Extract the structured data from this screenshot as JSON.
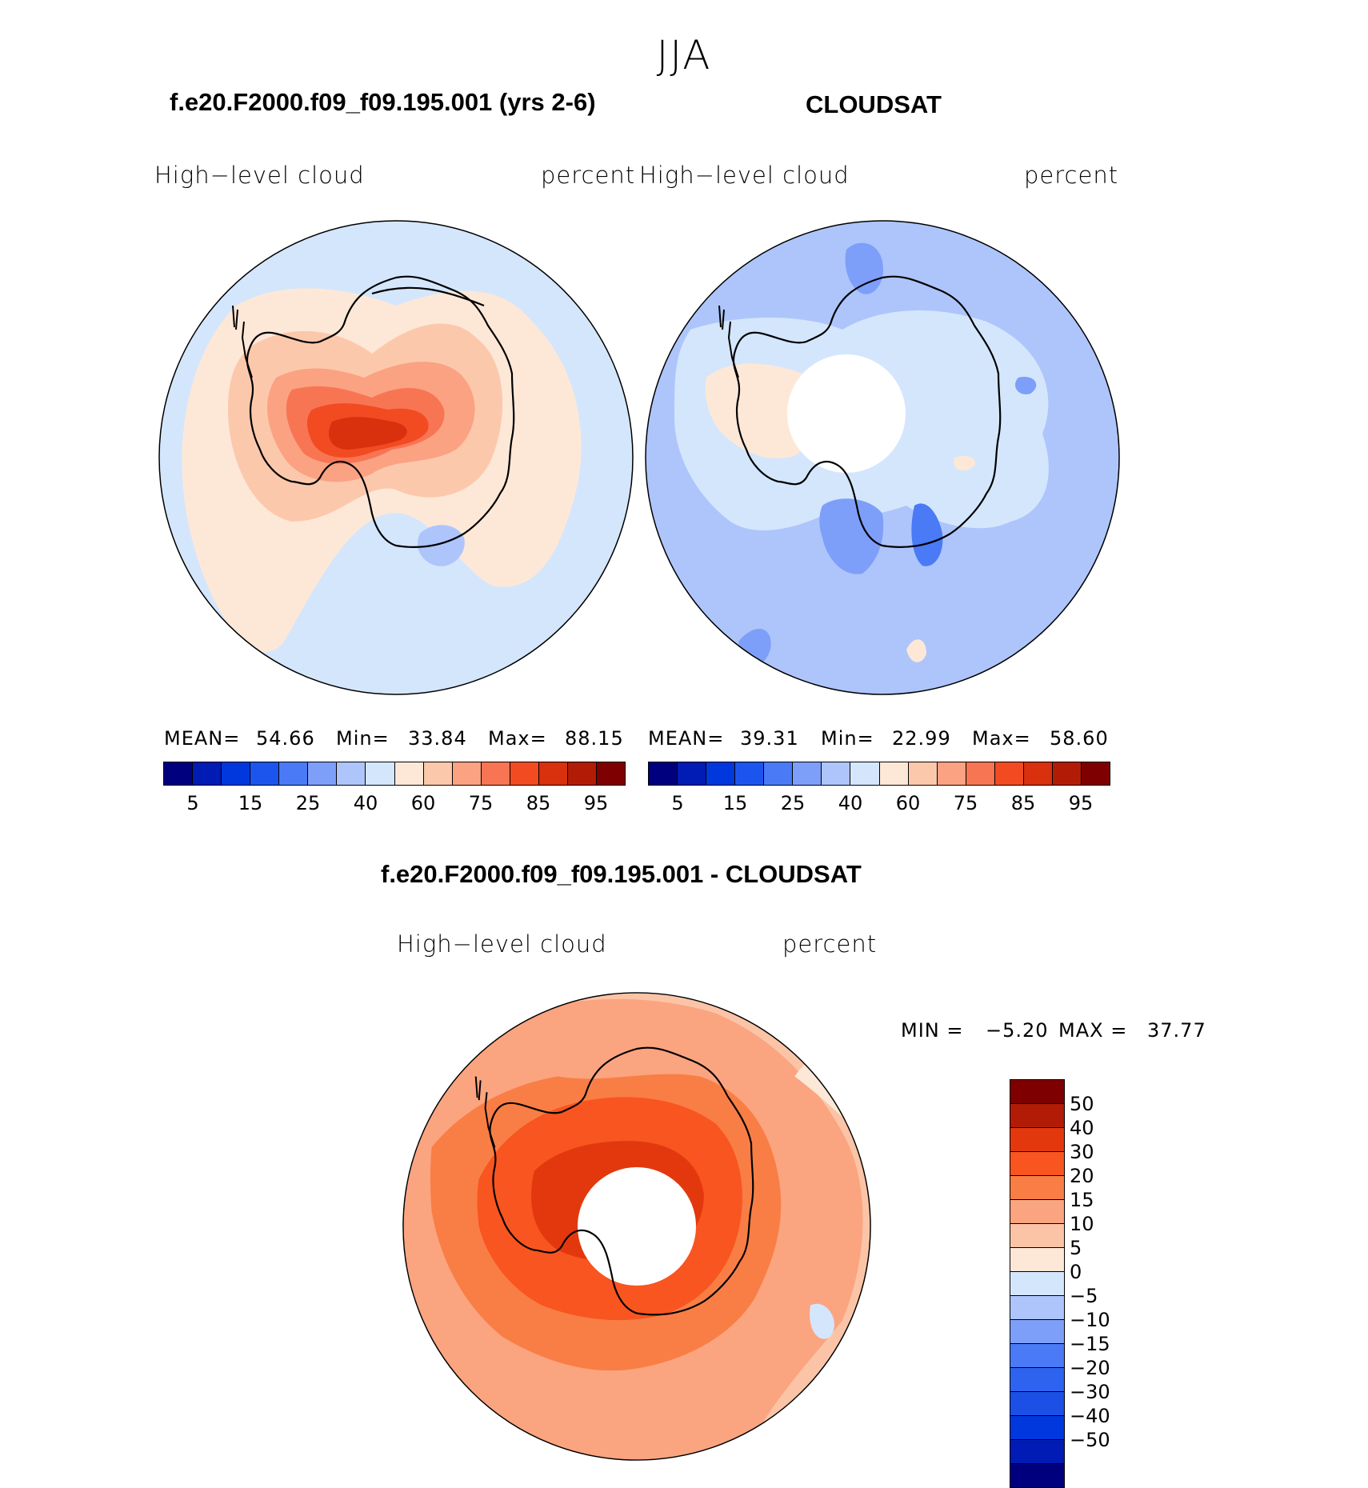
{
  "season": "JJA",
  "panels": {
    "model": {
      "title": "f.e20.F2000.f09_f09.195.001 (yrs 2-6)",
      "variable": "High−level  cloud",
      "units": "percent",
      "mean_label": "MEAN=",
      "mean": "54.66",
      "min_label": "Min=",
      "min": "33.84",
      "max_label": "Max=",
      "max": "88.15"
    },
    "obs": {
      "title": "CLOUDSAT",
      "variable": "High−level  cloud",
      "units": "percent",
      "mean_label": "MEAN=",
      "mean": "39.31",
      "min_label": "Min=",
      "min": "22.99",
      "max_label": "Max=",
      "max": "58.60"
    },
    "diff": {
      "title": "f.e20.F2000.f09_f09.195.001 - CLOUDSAT",
      "variable": "High−level  cloud",
      "units": "percent",
      "min_label": "MIN =",
      "min": "−5.20",
      "max_label": "MAX =",
      "max": "37.77"
    }
  },
  "colorbar_abs": {
    "colors": [
      "#00007f",
      "#001cb5",
      "#0038dd",
      "#1c55ee",
      "#4a7af6",
      "#7d9ff9",
      "#aec5fb",
      "#d4e6fc",
      "#fde8d7",
      "#fcc8ac",
      "#fba283",
      "#f87554",
      "#f24b22",
      "#d9300e",
      "#b21c07",
      "#7f0000"
    ],
    "ticks": [
      "5",
      "15",
      "25",
      "40",
      "60",
      "75",
      "85",
      "95"
    ]
  },
  "colorbar_diff": {
    "colors": [
      "#7f0000",
      "#b21c07",
      "#e3380d",
      "#f85520",
      "#f97e45",
      "#fba480",
      "#fcc4a7",
      "#fde8d7",
      "#d4e6fc",
      "#aec5fb",
      "#7d9ff9",
      "#4a7af6",
      "#2e63ef",
      "#1c4fe6",
      "#0038dd",
      "#001cb5",
      "#00007f"
    ],
    "ticks": [
      "50",
      "40",
      "30",
      "20",
      "15",
      "10",
      "5",
      "0",
      "−5",
      "−10",
      "−15",
      "−20",
      "−30",
      "−40",
      "−50"
    ]
  },
  "chart_data": [
    {
      "type": "heatmap",
      "projection": "south polar stereographic",
      "title": "f.e20.F2000.f09_f09.195.001 (yrs 2-6)",
      "season": "JJA",
      "variable": "High-level cloud",
      "units": "percent",
      "levels": [
        5,
        10,
        15,
        20,
        25,
        30,
        40,
        50,
        60,
        65,
        75,
        80,
        85,
        90,
        95
      ],
      "mean": 54.66,
      "min": 33.84,
      "max": 88.15
    },
    {
      "type": "heatmap",
      "projection": "south polar stereographic",
      "title": "CLOUDSAT",
      "season": "JJA",
      "variable": "High-level cloud",
      "units": "percent",
      "levels": [
        5,
        10,
        15,
        20,
        25,
        30,
        40,
        50,
        60,
        65,
        75,
        80,
        85,
        90,
        95
      ],
      "mean": 39.31,
      "min": 22.99,
      "max": 58.6
    },
    {
      "type": "heatmap",
      "projection": "south polar stereographic",
      "title": "f.e20.F2000.f09_f09.195.001 - CLOUDSAT",
      "season": "JJA",
      "variable": "High-level cloud",
      "units": "percent",
      "levels": [
        -50,
        -40,
        -30,
        -20,
        -15,
        -10,
        -5,
        0,
        5,
        10,
        15,
        20,
        30,
        40,
        50
      ],
      "min": -5.2,
      "max": 37.77
    }
  ]
}
